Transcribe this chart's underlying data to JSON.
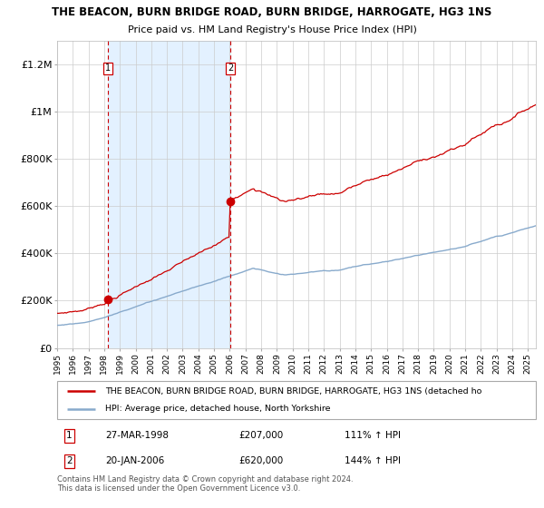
{
  "title": "THE BEACON, BURN BRIDGE ROAD, BURN BRIDGE, HARROGATE, HG3 1NS",
  "subtitle": "Price paid vs. HM Land Registry's House Price Index (HPI)",
  "legend_line1": "THE BEACON, BURN BRIDGE ROAD, BURN BRIDGE, HARROGATE, HG3 1NS (detached ho",
  "legend_line2": "HPI: Average price, detached house, North Yorkshire",
  "purchase1_date": "27-MAR-1998",
  "purchase1_price": 207000,
  "purchase1_hpi": "111% ↑ HPI",
  "purchase2_date": "20-JAN-2006",
  "purchase2_price": 620000,
  "purchase2_hpi": "144% ↑ HPI",
  "footer": "Contains HM Land Registry data © Crown copyright and database right 2024.\nThis data is licensed under the Open Government Licence v3.0.",
  "red_color": "#cc0000",
  "blue_color": "#88aacc",
  "bg_shaded": "#ddeeff",
  "vline_color": "#cc0000",
  "ylim": [
    0,
    1300000
  ],
  "yticks": [
    0,
    200000,
    400000,
    600000,
    800000,
    1000000,
    1200000
  ],
  "ytick_labels": [
    "£0",
    "£200K",
    "£400K",
    "£600K",
    "£800K",
    "£1M",
    "£1.2M"
  ],
  "purchase1_x": 1998.23,
  "purchase2_x": 2006.05,
  "xmin": 1995.0,
  "xmax": 2025.5
}
